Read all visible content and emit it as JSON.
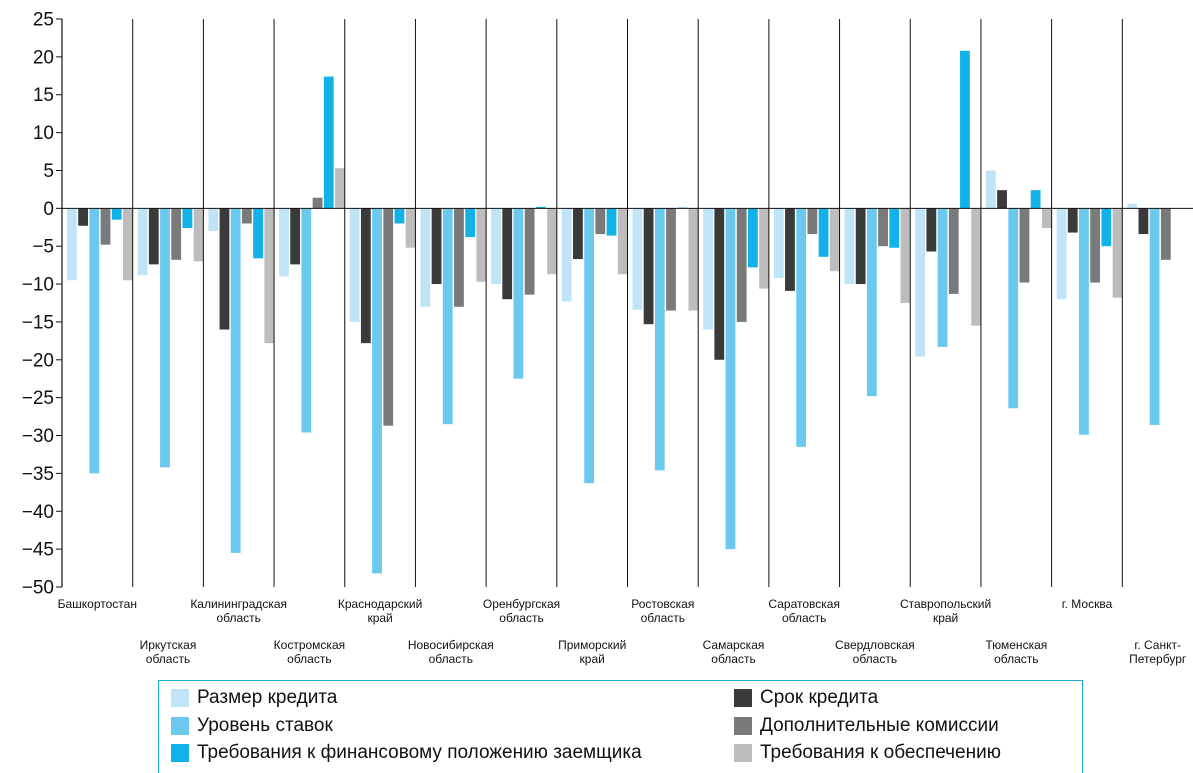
{
  "chart_data": {
    "type": "bar",
    "title": "",
    "xlabel": "",
    "ylabel": "",
    "ylim": [
      -50,
      25
    ],
    "yticks": [
      25,
      20,
      15,
      10,
      5,
      0,
      -5,
      -10,
      -15,
      -20,
      -25,
      -30,
      -35,
      -40,
      -45,
      -50
    ],
    "grid": "vertical separators between categories",
    "legend_position": "bottom",
    "categories": [
      [
        "Башкортостан"
      ],
      [
        "Иркутская",
        "область"
      ],
      [
        "Калининградская",
        "область"
      ],
      [
        "Костромская",
        "область"
      ],
      [
        "Краснодарский",
        "край"
      ],
      [
        "Новосибирская",
        "область"
      ],
      [
        "Оренбургская",
        "область"
      ],
      [
        "Приморский",
        "край"
      ],
      [
        "Ростовская",
        "область"
      ],
      [
        "Самарская",
        "область"
      ],
      [
        "Саратовская",
        "область"
      ],
      [
        "Свердловская",
        "область"
      ],
      [
        "Ставропольский",
        "край"
      ],
      [
        "Тюменская",
        "область"
      ],
      [
        "г. Москва"
      ],
      [
        "г. Санкт-",
        "Петербург"
      ]
    ],
    "series": [
      {
        "name": "Размер кредита",
        "color": "#bfe4f5",
        "values": [
          -9.5,
          -8.8,
          -3,
          -9,
          -15,
          -13,
          -10,
          -12.3,
          -13.4,
          -16,
          -9.2,
          -10,
          -19.6,
          5,
          -12,
          0.6
        ]
      },
      {
        "name": "Срок кредита",
        "color": "#3a3a3a",
        "values": [
          -2.3,
          -7.4,
          -16,
          -7.4,
          -17.8,
          -10,
          -12,
          -6.7,
          -15.3,
          -20,
          -10.9,
          -10,
          -5.7,
          2.4,
          -3.2,
          -3.4
        ]
      },
      {
        "name": "Уровень ставок",
        "color": "#6cc9ee",
        "values": [
          -35,
          -34.2,
          -45.5,
          -29.6,
          -48.2,
          -28.5,
          -22.5,
          -36.3,
          -34.6,
          -45,
          -31.5,
          -24.8,
          -18.3,
          -26.4,
          -29.9,
          -28.6
        ]
      },
      {
        "name": "Дополнительные комиссии",
        "color": "#7a7a7a",
        "values": [
          -4.8,
          -6.8,
          -2,
          1.4,
          -28.7,
          -13,
          -11.4,
          -3.4,
          -13.5,
          -15,
          -3.4,
          -5,
          -11.3,
          -9.8,
          -9.8,
          -6.8
        ]
      },
      {
        "name": "Требования к финансовому положению заемщика",
        "color": "#12b2e8",
        "values": [
          -1.5,
          -2.6,
          -6.6,
          17.4,
          -2,
          -3.8,
          0.2,
          -3.6,
          0.1,
          -7.8,
          -6.4,
          -5.2,
          20.8,
          2.4,
          -5,
          0
        ]
      },
      {
        "name": "Требования к обеспечению",
        "color": "#bdbdbd",
        "values": [
          -9.5,
          -7,
          -17.8,
          5.3,
          -5.2,
          -9.7,
          -8.7,
          -8.7,
          -13.5,
          -10.6,
          -8.3,
          -12.5,
          -15.5,
          -2.6,
          -11.8,
          0
        ]
      }
    ],
    "legend_layout": [
      {
        "series": 0,
        "col": 0,
        "row": 0
      },
      {
        "series": 2,
        "col": 0,
        "row": 1
      },
      {
        "series": 4,
        "col": 0,
        "row": 2
      },
      {
        "series": 1,
        "col": 1,
        "row": 0
      },
      {
        "series": 3,
        "col": 1,
        "row": 1
      },
      {
        "series": 5,
        "col": 1,
        "row": 2
      }
    ]
  }
}
